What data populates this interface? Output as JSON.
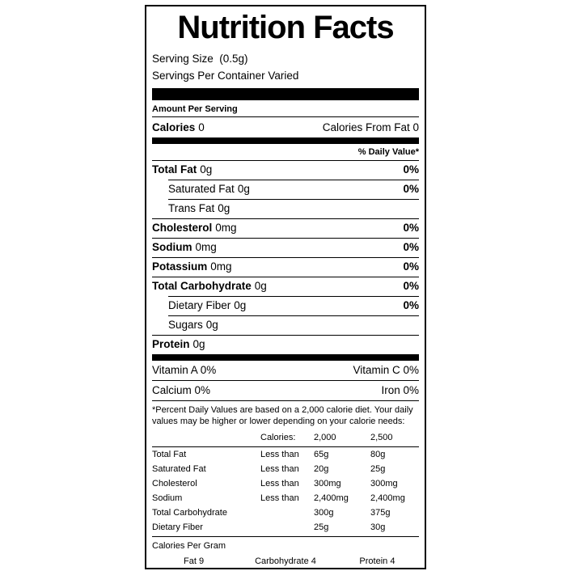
{
  "colors": {
    "ink": "#000000",
    "paper": "#ffffff"
  },
  "label": {
    "title": "Nutrition Facts",
    "serving_size": "Serving Size  (0.5g)",
    "servings_per_container": "Servings Per Container Varied",
    "amount_per_serving": "Amount Per Serving",
    "calories": {
      "label": "Calories",
      "value": "0"
    },
    "calories_from_fat": "Calories From Fat 0",
    "daily_value_header": "% Daily Value*",
    "nutrients": [
      {
        "name": "Total Fat",
        "amount": "0g",
        "dv": "0%"
      },
      {
        "name": "Saturated Fat",
        "amount": "0g",
        "dv": "0%"
      },
      {
        "name": "Trans Fat",
        "amount": "0g",
        "dv": ""
      },
      {
        "name": "Cholesterol",
        "amount": "0mg",
        "dv": "0%"
      },
      {
        "name": "Sodium",
        "amount": "0mg",
        "dv": "0%"
      },
      {
        "name": "Potassium",
        "amount": "0mg",
        "dv": "0%"
      },
      {
        "name": "Total Carbohydrate",
        "amount": "0g",
        "dv": "0%"
      },
      {
        "name": "Dietary Fiber",
        "amount": "0g",
        "dv": "0%"
      },
      {
        "name": "Sugars",
        "amount": "0g",
        "dv": ""
      },
      {
        "name": "Protein",
        "amount": "0g",
        "dv": ""
      }
    ],
    "vitamins": [
      {
        "left": "Vitamin A 0%",
        "right": "Vitamin C 0%"
      },
      {
        "left": "Calcium 0%",
        "right": "Iron 0%"
      }
    ],
    "footnote": "*Percent Daily Values are based on a 2,000 calorie diet. Your daily values may be higher or lower depending on your calorie needs:",
    "dv_table": {
      "header": {
        "label": "Calories:",
        "col_2000": "2,000",
        "col_2500": "2,500"
      },
      "rows": [
        {
          "name": "Total Fat",
          "qualifier": "Less than",
          "v2000": "65g",
          "v2500": "80g"
        },
        {
          "name": "Saturated Fat",
          "qualifier": "Less than",
          "v2000": "20g",
          "v2500": "25g"
        },
        {
          "name": "Cholesterol",
          "qualifier": "Less than",
          "v2000": "300mg",
          "v2500": "300mg"
        },
        {
          "name": "Sodium",
          "qualifier": "Less than",
          "v2000": "2,400mg",
          "v2500": "2,400mg"
        },
        {
          "name": "Total Carbohydrate",
          "qualifier": "",
          "v2000": "300g",
          "v2500": "375g"
        },
        {
          "name": "Dietary Fiber",
          "qualifier": "",
          "v2000": "25g",
          "v2500": "30g"
        }
      ]
    },
    "calories_per_gram": {
      "title": "Calories Per Gram",
      "items": [
        "Fat 9",
        "Carbohydrate 4",
        "Protein 4"
      ]
    }
  }
}
